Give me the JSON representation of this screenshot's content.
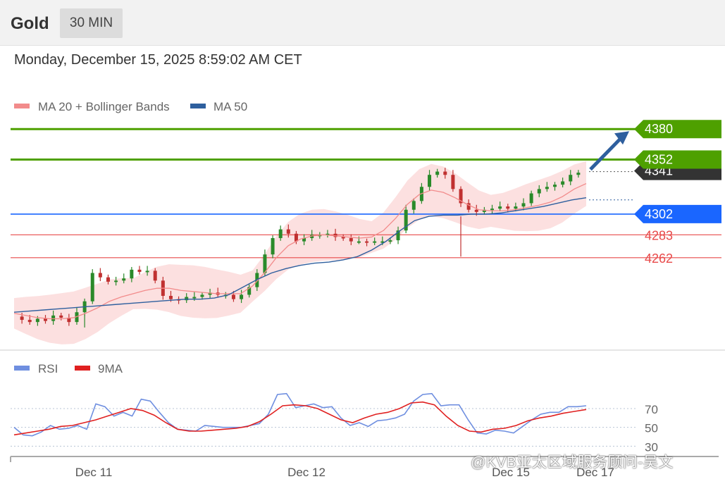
{
  "header": {
    "symbol": "Gold",
    "timeframe": "30 MIN"
  },
  "timestamp": "Monday, December 15, 2025 8:59:02 AM CET",
  "legend": {
    "bollinger": {
      "label": "MA 20 + Bollinger Bands",
      "color": "#f28b8b"
    },
    "ma50": {
      "label": "MA 50",
      "color": "#2e5f9e"
    }
  },
  "rsi_legend": {
    "rsi": {
      "label": "RSI",
      "color": "#6f8fe0"
    },
    "ma9": {
      "label": "9MA",
      "color": "#e02020"
    }
  },
  "watermark": "@KVB亚太区域服务顾问-吴文",
  "colors": {
    "green": "#4ea000",
    "blue_level": "#1a66ff",
    "red_level": "#e84a4a",
    "candle_up": "#2a8a2a",
    "candle_down": "#c03030",
    "band_fill": "#fbd5d5"
  },
  "chart_data": [
    {
      "type": "candlestick",
      "title": "Gold",
      "ylim": [
        4185,
        4395
      ],
      "x_ticks": [
        "Dec 11",
        "Dec 12",
        "Dec 15",
        "Dec 17"
      ],
      "levels": [
        {
          "value": 4380,
          "label": "4380",
          "kind": "resistance-target",
          "color": "#4ea000"
        },
        {
          "value": 4352,
          "label": "4352",
          "kind": "resistance",
          "color": "#4ea000"
        },
        {
          "value": 4341,
          "label": "4341",
          "kind": "last-price",
          "color": "#333333"
        },
        {
          "value": 4302,
          "label": "4302",
          "kind": "pivot",
          "color": "#1a66ff"
        },
        {
          "value": 4283,
          "label": "4283",
          "kind": "support",
          "color": "#e84a4a"
        },
        {
          "value": 4262,
          "label": "4262",
          "kind": "support",
          "color": "#e84a4a"
        }
      ],
      "price_path": [
        4208,
        4205,
        4203,
        4206,
        4204,
        4209,
        4207,
        4203,
        4212,
        4222,
        4248,
        4244,
        4240,
        4241,
        4243,
        4251,
        4249,
        4250,
        4241,
        4227,
        4224,
        4223,
        4226,
        4226,
        4228,
        4230,
        4228,
        4228,
        4224,
        4228,
        4235,
        4248,
        4265,
        4280,
        4288,
        4284,
        4277,
        4280,
        4283,
        4283,
        4284,
        4281,
        4280,
        4277,
        4277,
        4276,
        4277,
        4277,
        4278,
        4287,
        4306,
        4314,
        4327,
        4338,
        4341,
        4338,
        4325,
        4312,
        4306,
        4304,
        4306,
        4307,
        4309,
        4307,
        4309,
        4312,
        4321,
        4325,
        4327,
        4329,
        4332,
        4338,
        4340
      ],
      "ma20_path": [
        4211,
        4209,
        4207,
        4206,
        4206,
        4207,
        4211,
        4216,
        4222,
        4226,
        4229,
        4232,
        4234,
        4234,
        4232,
        4231,
        4230,
        4229,
        4229,
        4229,
        4236,
        4248,
        4262,
        4273,
        4279,
        4282,
        4283,
        4282,
        4281,
        4280,
        4281,
        4287,
        4298,
        4311,
        4320,
        4324,
        4322,
        4317,
        4311,
        4306,
        4305,
        4305,
        4306,
        4308,
        4310,
        4313,
        4318,
        4325,
        4330
      ],
      "ma50_path": [
        4212,
        4213,
        4214,
        4215,
        4216,
        4217,
        4218,
        4219,
        4220,
        4221,
        4222,
        4223,
        4224,
        4224,
        4225,
        4228,
        4235,
        4242,
        4248,
        4252,
        4255,
        4257,
        4258,
        4260,
        4263,
        4269,
        4277,
        4287,
        4296,
        4300,
        4301,
        4301,
        4302,
        4302,
        4303,
        4305,
        4307,
        4309,
        4312,
        4315,
        4317
      ]
    },
    {
      "type": "line",
      "title": "",
      "ylim": [
        25,
        100
      ],
      "y_ticks": [
        70,
        50,
        30
      ],
      "series": [
        {
          "name": "RSI",
          "values": [
            50,
            42,
            41,
            45,
            52,
            48,
            49,
            52,
            48,
            75,
            72,
            62,
            66,
            62,
            80,
            78,
            66,
            55,
            48,
            47,
            46,
            52,
            51,
            50,
            50,
            50,
            52,
            54,
            64,
            85,
            86,
            71,
            73,
            75,
            71,
            72,
            60,
            52,
            55,
            51,
            57,
            58,
            60,
            64,
            78,
            85,
            86,
            73,
            74,
            74,
            58,
            44,
            43,
            47,
            46,
            44,
            51,
            58,
            64,
            66,
            66,
            72,
            72,
            73
          ]
        },
        {
          "name": "9MA",
          "values": [
            42,
            44,
            46,
            48,
            51,
            52,
            55,
            58,
            62,
            66,
            70,
            68,
            63,
            55,
            48,
            46,
            46,
            47,
            48,
            49,
            51,
            56,
            64,
            73,
            74,
            73,
            70,
            64,
            58,
            55,
            60,
            64,
            66,
            70,
            76,
            77,
            74,
            62,
            52,
            46,
            45,
            48,
            49,
            52,
            57,
            60,
            62,
            65,
            67,
            69
          ]
        }
      ]
    }
  ]
}
